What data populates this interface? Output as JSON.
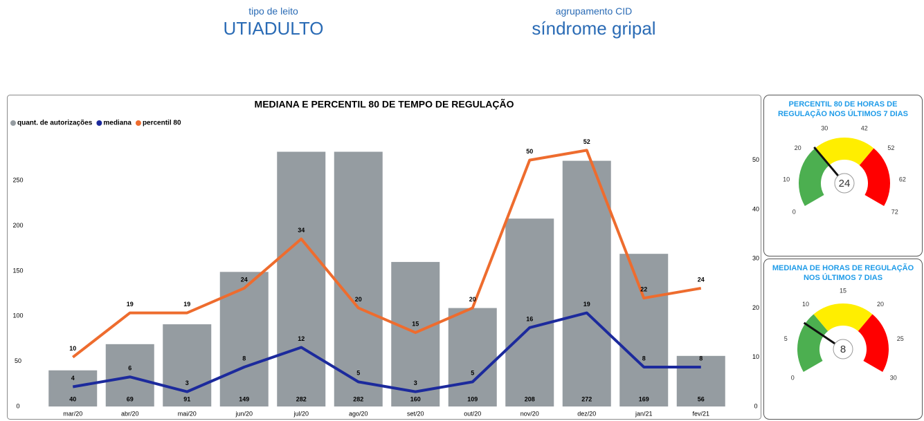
{
  "filters": [
    {
      "label": "tipo de leito",
      "value": "UTIADULTO"
    },
    {
      "label": "agrupamento CID",
      "value": "síndrome gripal"
    }
  ],
  "chart_data": [
    {
      "type": "combo",
      "title": "MEDIANA E PERCENTIL 80 DE TEMPO DE REGULAÇÃO",
      "categories": [
        "mar/20",
        "abr/20",
        "mai/20",
        "jun/20",
        "jul/20",
        "ago/20",
        "set/20",
        "out/20",
        "nov/20",
        "dez/20",
        "jan/21",
        "fev/21"
      ],
      "series": [
        {
          "name": "quant. de autorizações",
          "color": "#959ca1",
          "type": "bar",
          "values": [
            40,
            69,
            91,
            149,
            282,
            282,
            160,
            109,
            208,
            272,
            169,
            56
          ]
        },
        {
          "name": "mediana",
          "color": "#1c2a9c",
          "type": "line",
          "axis": "y2",
          "values": [
            4,
            6,
            3,
            8,
            12,
            5,
            3,
            5,
            16,
            19,
            8,
            8
          ]
        },
        {
          "name": "percentil 80",
          "color": "#ee6c2e",
          "type": "line",
          "axis": "y2",
          "values": [
            10,
            19,
            19,
            24,
            34,
            20,
            15,
            20,
            50,
            52,
            22,
            24
          ]
        }
      ],
      "ylim": [
        0,
        300
      ],
      "yticks": [
        0,
        50,
        100,
        150,
        200,
        250
      ],
      "y2lim": [
        0,
        55
      ],
      "y2ticks": [
        0,
        10,
        20,
        30,
        40,
        50
      ]
    },
    {
      "type": "gauge",
      "title": "PERCENTIL 80 DE HORAS DE REGULAÇÃO NOS ÚLTIMOS 7 DIAS",
      "value": 24,
      "range": [
        0,
        72
      ],
      "ticks": [
        0,
        10,
        20,
        30,
        42,
        52,
        62,
        72
      ],
      "bands": [
        {
          "to": 24,
          "color": "#4caf50"
        },
        {
          "to": 48,
          "color": "#ffee00"
        },
        {
          "to": 72,
          "color": "#ff0000"
        }
      ]
    },
    {
      "type": "gauge",
      "title": "MEDIANA DE HORAS DE REGULAÇÃO NOS ÚLTIMOS 7 DIAS",
      "value": 8,
      "range": [
        0,
        30
      ],
      "ticks": [
        0,
        5,
        10,
        15,
        20,
        25,
        30
      ],
      "bands": [
        {
          "to": 10,
          "color": "#4caf50"
        },
        {
          "to": 20,
          "color": "#ffee00"
        },
        {
          "to": 30,
          "color": "#ff0000"
        }
      ]
    }
  ]
}
